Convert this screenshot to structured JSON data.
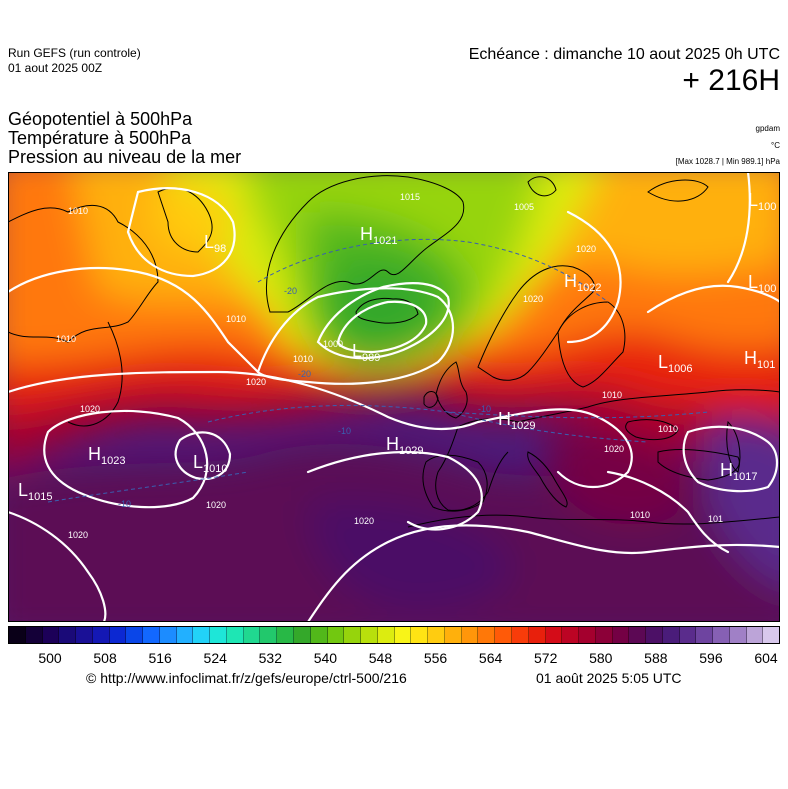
{
  "header": {
    "run_title": "Run GEFS (run controle)",
    "run_date": "01 aout 2025 00Z",
    "valid": "Echéance : dimanche 10 aout 2025 0h UTC",
    "lead_time": "+ 216H"
  },
  "fields": {
    "line1": "Géopotentiel à 500hPa",
    "line2": "Température à 500hPa",
    "line3": "Pression au niveau de la mer",
    "unit1": "gpdam",
    "unit2": "°C",
    "unit3": "[Max 1028.7 | Min 989.1] hPa"
  },
  "map": {
    "pressure_centers": [
      {
        "type": "H",
        "value": "1021",
        "name": "high-greenland"
      },
      {
        "type": "L",
        "value": "989",
        "name": "low-iceland"
      },
      {
        "type": "H",
        "value": "1022",
        "name": "high-scandinavia"
      },
      {
        "type": "L",
        "value": "1006",
        "name": "low-russia"
      },
      {
        "type": "H",
        "value": "101",
        "name": "high-east-edge"
      },
      {
        "type": "L",
        "value": "100",
        "name": "low-northeast-1"
      },
      {
        "type": "L",
        "value": "100",
        "name": "low-northeast-2"
      },
      {
        "type": "H",
        "value": "1023",
        "name": "high-atlantic"
      },
      {
        "type": "L",
        "value": "1010",
        "name": "low-atlantic"
      },
      {
        "type": "L",
        "value": "1015",
        "name": "low-west"
      },
      {
        "type": "H",
        "value": "1029",
        "name": "high-biscay"
      },
      {
        "type": "H",
        "value": "1029",
        "name": "high-central-europe"
      },
      {
        "type": "H",
        "value": "1017",
        "name": "high-turkey"
      },
      {
        "type": "L",
        "value": "98",
        "name": "low-labrador"
      }
    ],
    "isobar_labels": [
      "1010",
      "1010",
      "1010",
      "1020",
      "1020",
      "1020",
      "1020",
      "1020",
      "1000",
      "1010",
      "1020",
      "1020",
      "1020",
      "1010",
      "1015",
      "1010",
      "1010",
      "101",
      "1005"
    ],
    "temperature_labels": [
      "-20",
      "-20",
      "-10",
      "-10",
      "-10"
    ]
  },
  "colorbar": {
    "colors": [
      "#0a0018",
      "#140038",
      "#1c0058",
      "#1a0a78",
      "#1a1096",
      "#1418b4",
      "#0c28d2",
      "#0a46e8",
      "#1268ff",
      "#1c8cff",
      "#22b0ff",
      "#22d2f8",
      "#1ee6d8",
      "#1ee6b4",
      "#20d890",
      "#22c86c",
      "#28b846",
      "#34a82a",
      "#52b81a",
      "#72c810",
      "#96d40c",
      "#b8e00c",
      "#dcec10",
      "#f8f418",
      "#ffe414",
      "#ffcc10",
      "#ffb00c",
      "#ff960a",
      "#ff7808",
      "#ff5a08",
      "#f83c0a",
      "#e8200c",
      "#d40c18",
      "#bc0424",
      "#a4002e",
      "#8c0038",
      "#740044",
      "#5c0854",
      "#4c1066",
      "#4a1c7a",
      "#5a2c8c",
      "#6e44a0",
      "#8660b4",
      "#a080c6",
      "#bca4d8",
      "#d8c8ec"
    ],
    "ticks": [
      "500",
      "508",
      "516",
      "524",
      "532",
      "540",
      "548",
      "556",
      "564",
      "572",
      "580",
      "588",
      "596",
      "604"
    ]
  },
  "footer": {
    "url": "© http://www.infoclimat.fr/z/gefs/europe/ctrl-500/216",
    "timestamp": "01 août 2025  5:05 UTC"
  }
}
